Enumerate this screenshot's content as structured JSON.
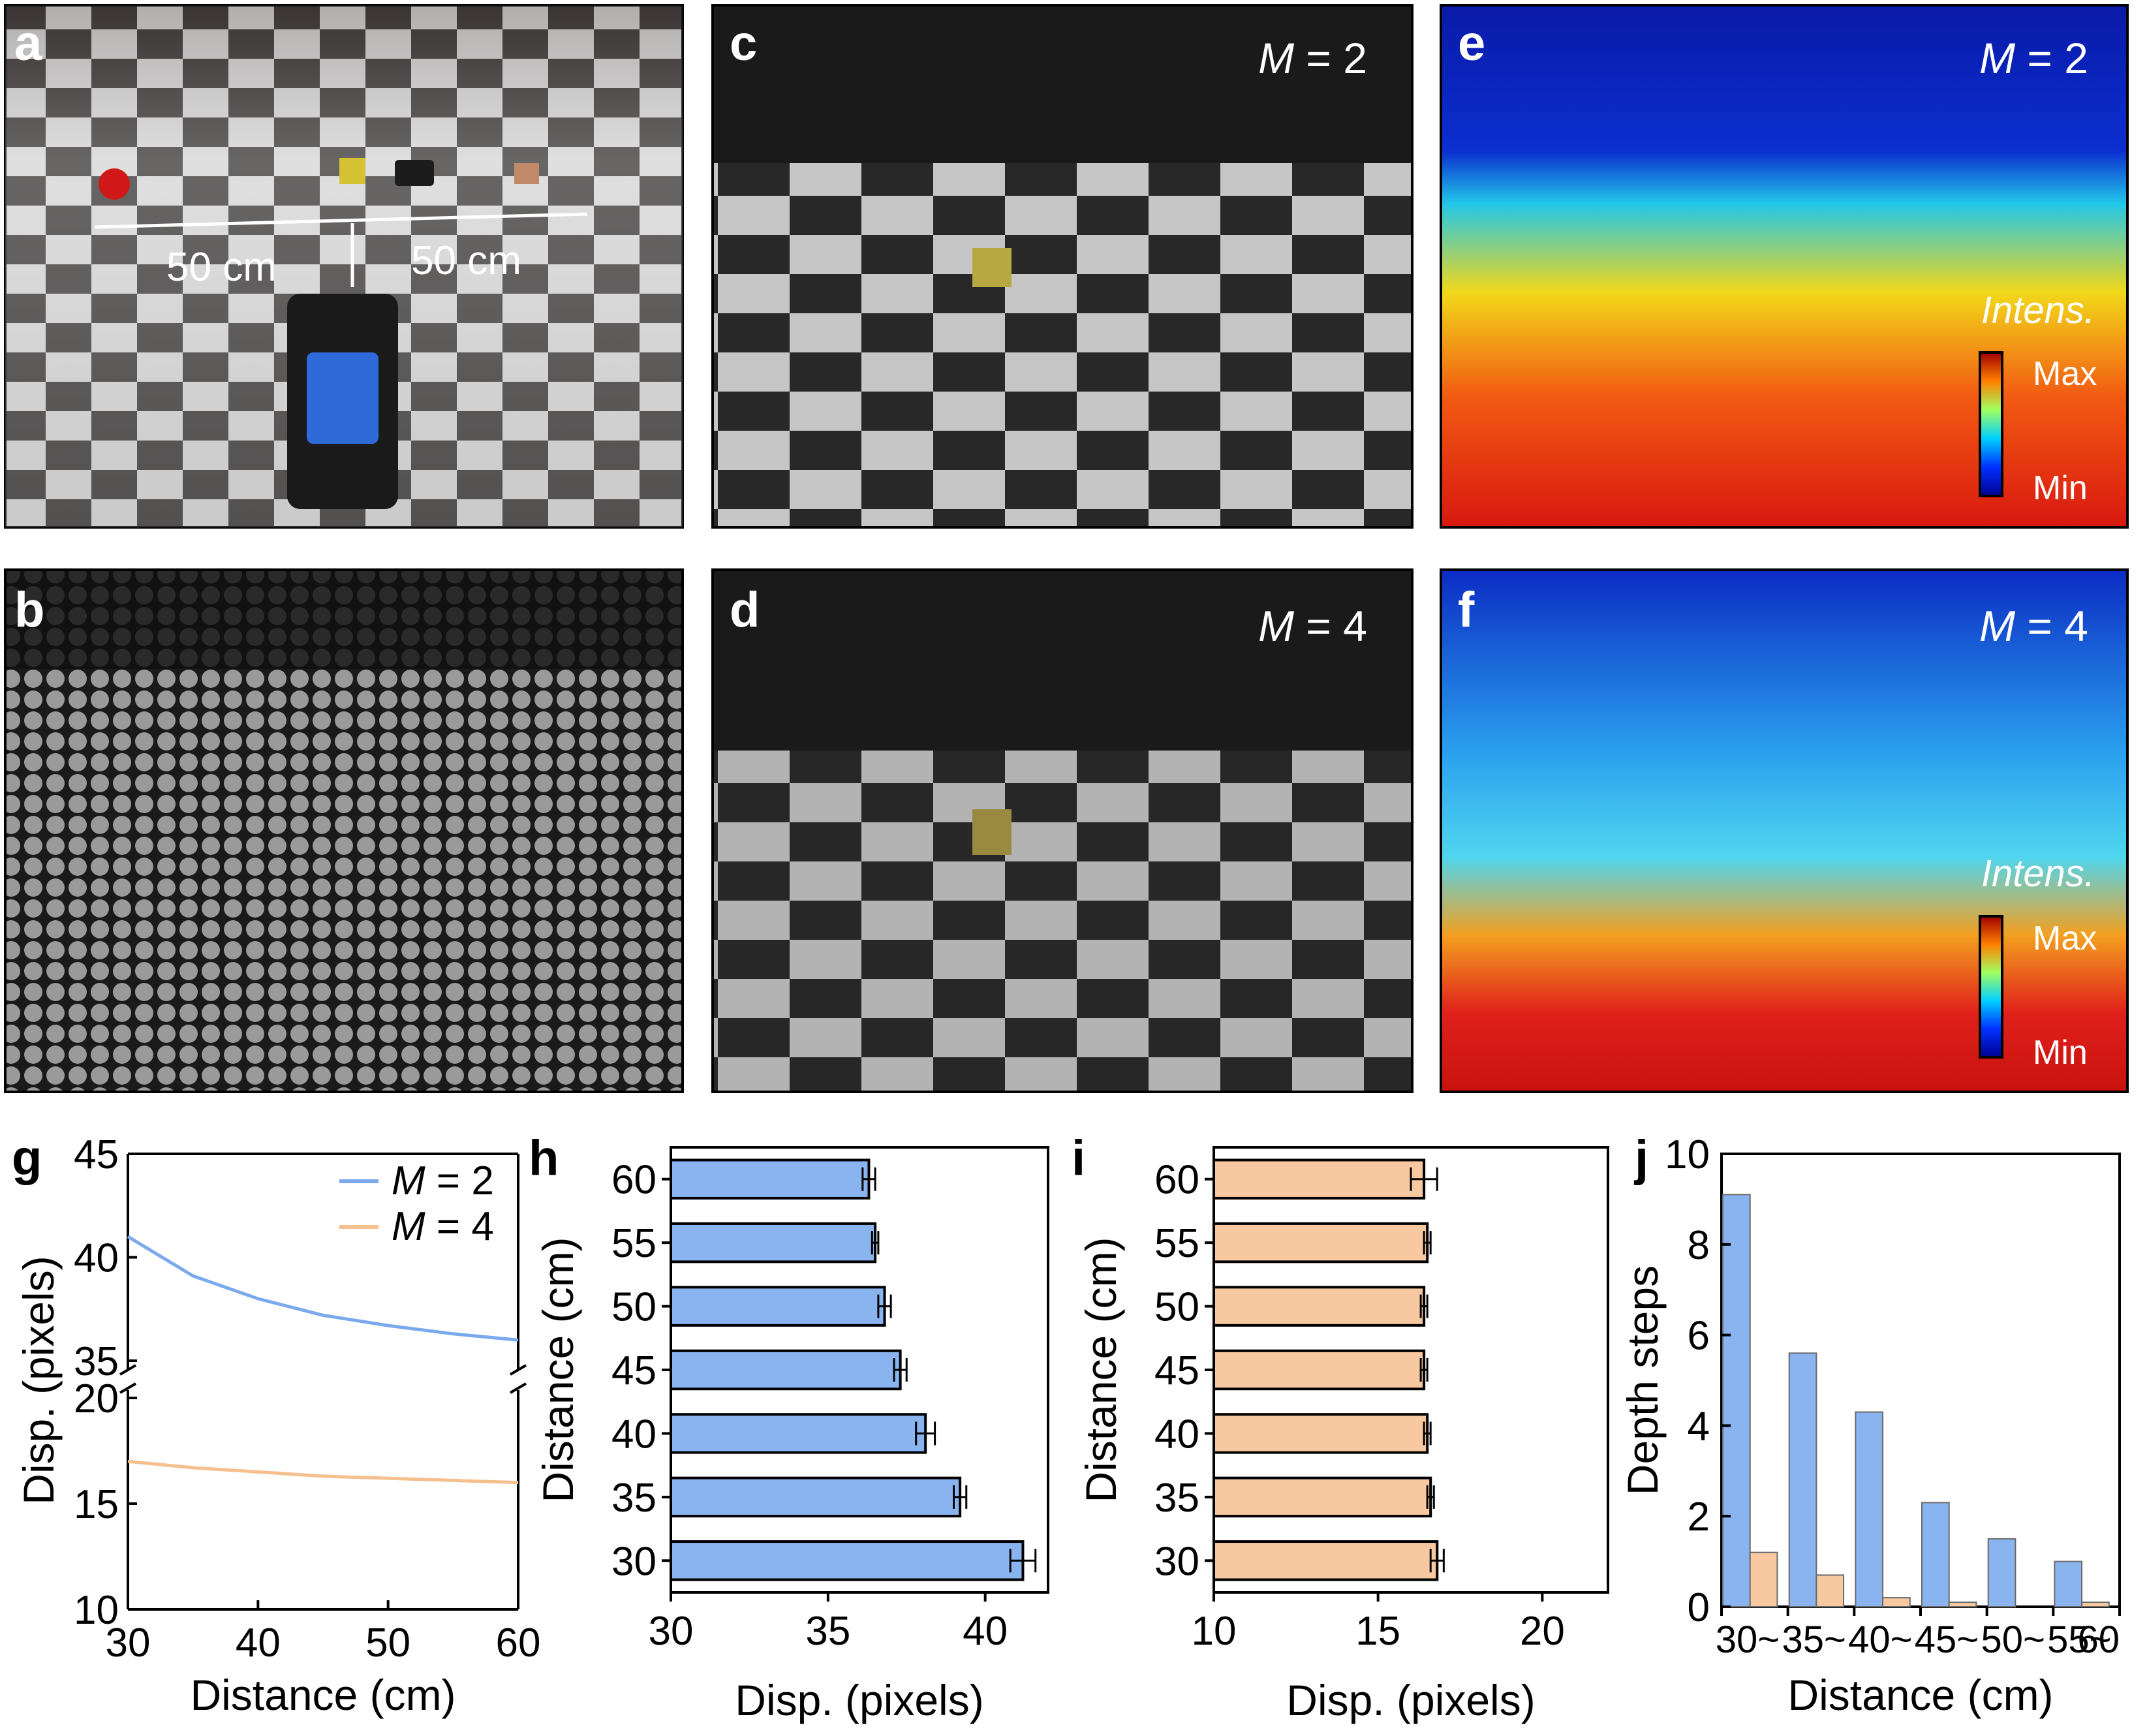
{
  "colors": {
    "m2": "#8ab4f0",
    "m2_line": "#7aa9ee",
    "m4": "#f8c9a0",
    "m4_line": "#f5c08e",
    "text": "#000000",
    "white": "#ffffff"
  },
  "panels": {
    "a": {
      "letter": "a",
      "dim_left": "50 cm",
      "dim_right": "50 cm"
    },
    "b": {
      "letter": "b"
    },
    "c": {
      "letter": "c",
      "m_symbol": "M",
      "m_rest": " = 2"
    },
    "d": {
      "letter": "d",
      "m_symbol": "M",
      "m_rest": " = 4"
    },
    "e": {
      "letter": "e",
      "m_symbol": "M",
      "m_rest": " = 2",
      "colorbar_title": "Intens.",
      "cb_max": "Max",
      "cb_min": "Min"
    },
    "f": {
      "letter": "f",
      "m_symbol": "M",
      "m_rest": " = 4",
      "colorbar_title": "Intens.",
      "cb_max": "Max",
      "cb_min": "Min"
    }
  },
  "chart_data": [
    {
      "panel": "g",
      "type": "line",
      "xlabel": "Distance (cm)",
      "ylabel": "Disp. (pixels)",
      "xlim": [
        30,
        60
      ],
      "xticks": [
        "30",
        "40",
        "50",
        "60"
      ],
      "y_upper_lim": [
        35,
        45
      ],
      "y_upper_ticks": [
        "35",
        "40",
        "45"
      ],
      "y_lower_lim": [
        10,
        20
      ],
      "y_lower_ticks": [
        "10",
        "15",
        "20"
      ],
      "axis_break": true,
      "legend": [
        {
          "symbol": "M",
          "rest": " = 2"
        },
        {
          "symbol": "M",
          "rest": " = 4"
        }
      ],
      "series": [
        {
          "name": "M = 2",
          "x": [
            30,
            35,
            40,
            45,
            50,
            55,
            60
          ],
          "y": [
            41.0,
            39.1,
            38.0,
            37.2,
            36.7,
            36.3,
            36.0
          ]
        },
        {
          "name": "M = 4",
          "x": [
            30,
            35,
            40,
            45,
            50,
            55,
            60
          ],
          "y": [
            17.0,
            16.7,
            16.5,
            16.3,
            16.2,
            16.1,
            16.0
          ]
        }
      ]
    },
    {
      "panel": "h",
      "type": "bar",
      "orientation": "horizontal",
      "categories": [
        "30",
        "35",
        "40",
        "45",
        "50",
        "55",
        "60"
      ],
      "values": [
        41.2,
        39.2,
        38.1,
        37.3,
        36.8,
        36.5,
        36.3
      ],
      "errors": [
        0.4,
        0.2,
        0.3,
        0.2,
        0.2,
        0.1,
        0.2
      ],
      "xlim": [
        30,
        42
      ],
      "xticks": [
        "30",
        "35",
        "40"
      ],
      "xlabel": "Disp. (pixels)",
      "ylabel": "Distance (cm)"
    },
    {
      "panel": "i",
      "type": "bar",
      "orientation": "horizontal",
      "categories": [
        "30",
        "35",
        "40",
        "45",
        "50",
        "55",
        "60"
      ],
      "values": [
        16.8,
        16.6,
        16.5,
        16.4,
        16.4,
        16.5,
        16.4
      ],
      "errors": [
        0.2,
        0.1,
        0.1,
        0.1,
        0.1,
        0.1,
        0.4
      ],
      "xlim": [
        10,
        22
      ],
      "xticks": [
        "10",
        "15",
        "20"
      ],
      "xlabel": "Disp. (pixels)",
      "ylabel": "Distance (cm)"
    },
    {
      "panel": "j",
      "type": "bar",
      "categories": [
        "30~35",
        "35~40",
        "40~45",
        "45~50",
        "50~55",
        "55~60"
      ],
      "tick_labels": [
        "30~",
        "35~",
        "40~",
        "45~",
        "50~",
        "55~",
        "60"
      ],
      "series": [
        {
          "name": "M = 2",
          "values": [
            9.1,
            5.6,
            4.3,
            2.3,
            1.5,
            1.0
          ]
        },
        {
          "name": "M = 4",
          "values": [
            1.2,
            0.7,
            0.2,
            0.1,
            0.0,
            0.1
          ]
        }
      ],
      "ylim": [
        0,
        10
      ],
      "yticks": [
        "0",
        "2",
        "4",
        "6",
        "8",
        "10"
      ],
      "xlabel": "Distance (cm)",
      "ylabel": "Depth steps"
    }
  ]
}
